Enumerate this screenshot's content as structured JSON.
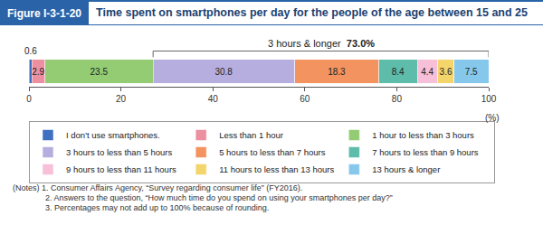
{
  "chart_data": {
    "type": "bar",
    "orientation": "horizontal",
    "stacked": true,
    "figure_label": "Figure I-3-1-20",
    "title": "Time spent on smartphones per day for the people of the age between 15 and 25",
    "x_label": "(%)",
    "xlim": [
      0,
      100
    ],
    "xticks": [
      0,
      20,
      40,
      60,
      80,
      100
    ],
    "grid": false,
    "data_labels": true,
    "legend": "bottom",
    "series": [
      {
        "name": "I don't use smartphones.",
        "color": "#3f6fc0",
        "values": [
          0.6
        ]
      },
      {
        "name": "Less than 1 hour",
        "color": "#ec8fa0",
        "values": [
          2.9
        ]
      },
      {
        "name": "1 hour to less than 3 hours",
        "color": "#93cc72",
        "values": [
          23.5
        ]
      },
      {
        "name": "3 hours to less than 5 hours",
        "color": "#b7aee0",
        "values": [
          30.8
        ]
      },
      {
        "name": "5 hours to less than 7 hours",
        "color": "#f3935f",
        "values": [
          18.3
        ]
      },
      {
        "name": "7 hours to less than 9 hours",
        "color": "#5dbcaa",
        "values": [
          8.4
        ]
      },
      {
        "name": "9 hours to less than 11 hours",
        "color": "#f7bfd8",
        "values": [
          4.4
        ]
      },
      {
        "name": "11 hours to less than 13 hours",
        "color": "#f4d56c",
        "values": [
          3.6
        ]
      },
      {
        "name": "13 hours & longer",
        "color": "#86c8ec",
        "values": [
          7.5
        ]
      }
    ],
    "annotations": [
      {
        "text": "3 hours & longer",
        "value": 73.0,
        "value_label": "73.0%"
      }
    ],
    "notes": [
      "(Notes) 1. Consumer Affairs Agency, “Survey regarding consumer life” (FY2016).",
      "2. Answers to the question, “How much time do you spend on using your smartphones per day?”",
      "3. Percentages may not add up to 100% because of rounding."
    ]
  }
}
